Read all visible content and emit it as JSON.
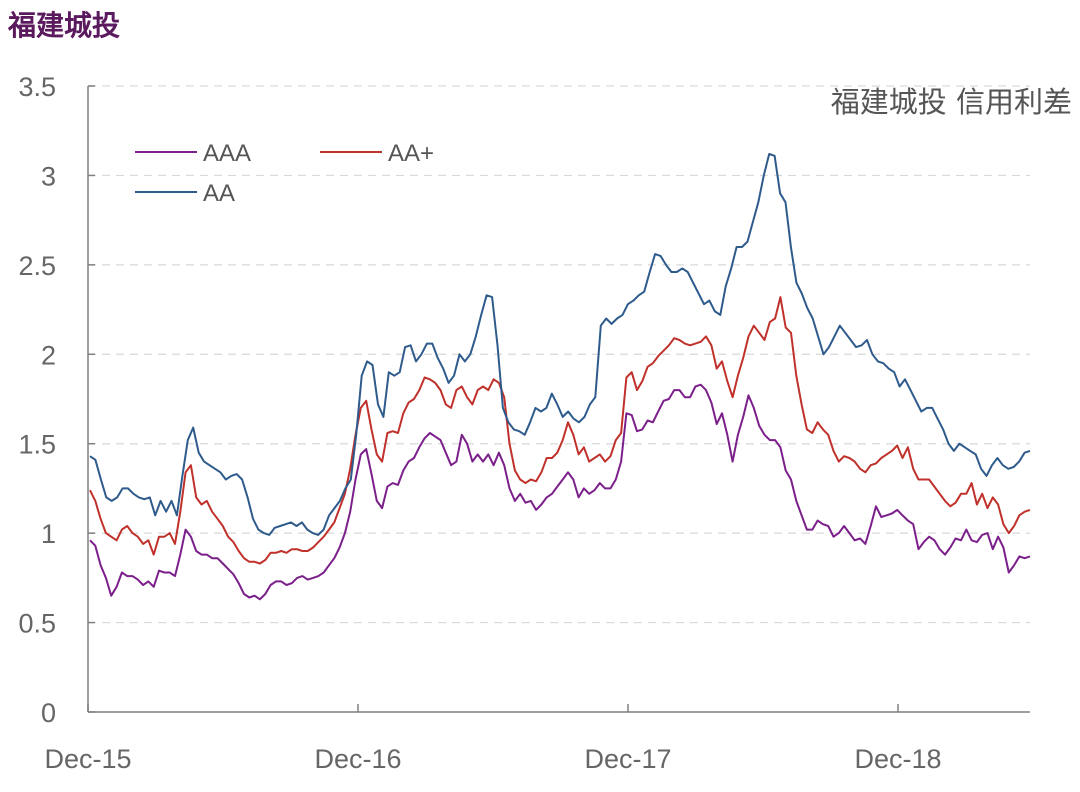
{
  "page_title": "福建城投",
  "chart_data": {
    "type": "line",
    "title": "福建城投 信用利差",
    "xlabel": "",
    "ylabel": "",
    "ylim": [
      0,
      3.5
    ],
    "y_ticks": [
      "0",
      "0.5",
      "1",
      "1.5",
      "2",
      "2.5",
      "3",
      "3.5"
    ],
    "x_ticks": [
      "Dec-15",
      "Dec-16",
      "Dec-17",
      "Dec-18"
    ],
    "grid": "horizontal dashed",
    "legend_position": "top-left",
    "x_start": "2015-12",
    "x_end": "2019-05",
    "x_tick_dates": [
      "2015-12",
      "2016-12",
      "2017-12",
      "2018-12"
    ],
    "series": [
      {
        "name": "AAA",
        "color": "#7b1f8a",
        "values": [
          0.96,
          0.93,
          0.82,
          0.75,
          0.65,
          0.7,
          0.78,
          0.76,
          0.76,
          0.74,
          0.71,
          0.73,
          0.7,
          0.79,
          0.78,
          0.78,
          0.76,
          0.88,
          1.02,
          0.98,
          0.9,
          0.88,
          0.88,
          0.86,
          0.86,
          0.83,
          0.8,
          0.77,
          0.72,
          0.66,
          0.64,
          0.65,
          0.63,
          0.66,
          0.71,
          0.73,
          0.73,
          0.71,
          0.72,
          0.75,
          0.76,
          0.74,
          0.75,
          0.76,
          0.78,
          0.82,
          0.86,
          0.92,
          1.0,
          1.12,
          1.3,
          1.44,
          1.47,
          1.33,
          1.18,
          1.14,
          1.26,
          1.28,
          1.27,
          1.35,
          1.4,
          1.42,
          1.48,
          1.53,
          1.56,
          1.54,
          1.52,
          1.45,
          1.38,
          1.4,
          1.55,
          1.5,
          1.4,
          1.44,
          1.4,
          1.44,
          1.38,
          1.45,
          1.38,
          1.25,
          1.18,
          1.22,
          1.17,
          1.18,
          1.13,
          1.16,
          1.2,
          1.22,
          1.26,
          1.3,
          1.34,
          1.3,
          1.2,
          1.25,
          1.22,
          1.24,
          1.28,
          1.25,
          1.25,
          1.3,
          1.4,
          1.67,
          1.66,
          1.57,
          1.58,
          1.63,
          1.62,
          1.68,
          1.74,
          1.75,
          1.8,
          1.8,
          1.76,
          1.76,
          1.82,
          1.83,
          1.8,
          1.73,
          1.61,
          1.67,
          1.55,
          1.4,
          1.55,
          1.65,
          1.77,
          1.7,
          1.6,
          1.55,
          1.52,
          1.52,
          1.48,
          1.35,
          1.3,
          1.18,
          1.1,
          1.02,
          1.02,
          1.07,
          1.05,
          1.04,
          0.98,
          1.0,
          1.04,
          1.0,
          0.96,
          0.97,
          0.94,
          1.04,
          1.15,
          1.09,
          1.1,
          1.11,
          1.13,
          1.1,
          1.07,
          1.05,
          0.91,
          0.95,
          0.98,
          0.96,
          0.91,
          0.88,
          0.92,
          0.97,
          0.96,
          1.02,
          0.96,
          0.95,
          0.99,
          1.0,
          0.91,
          0.98,
          0.92,
          0.78,
          0.82,
          0.87,
          0.86,
          0.87
        ]
      },
      {
        "name": "AA+",
        "color": "#c0312b",
        "values": [
          1.24,
          1.18,
          1.08,
          1.0,
          0.98,
          0.96,
          1.02,
          1.04,
          1.0,
          0.98,
          0.94,
          0.96,
          0.88,
          0.98,
          0.98,
          1.0,
          0.94,
          1.12,
          1.34,
          1.38,
          1.2,
          1.16,
          1.18,
          1.12,
          1.08,
          1.04,
          0.98,
          0.95,
          0.9,
          0.86,
          0.84,
          0.84,
          0.83,
          0.85,
          0.89,
          0.89,
          0.9,
          0.89,
          0.91,
          0.91,
          0.9,
          0.9,
          0.92,
          0.95,
          0.98,
          1.02,
          1.06,
          1.14,
          1.22,
          1.36,
          1.55,
          1.7,
          1.74,
          1.58,
          1.44,
          1.4,
          1.56,
          1.57,
          1.56,
          1.67,
          1.73,
          1.75,
          1.8,
          1.87,
          1.86,
          1.84,
          1.8,
          1.72,
          1.7,
          1.8,
          1.82,
          1.76,
          1.72,
          1.8,
          1.82,
          1.8,
          1.86,
          1.84,
          1.76,
          1.5,
          1.35,
          1.3,
          1.28,
          1.3,
          1.29,
          1.34,
          1.42,
          1.42,
          1.45,
          1.52,
          1.62,
          1.55,
          1.44,
          1.48,
          1.4,
          1.42,
          1.44,
          1.4,
          1.43,
          1.52,
          1.56,
          1.87,
          1.9,
          1.8,
          1.85,
          1.93,
          1.95,
          1.99,
          2.02,
          2.05,
          2.09,
          2.08,
          2.06,
          2.05,
          2.06,
          2.07,
          2.1,
          2.05,
          1.92,
          1.96,
          1.85,
          1.76,
          1.88,
          1.98,
          2.1,
          2.16,
          2.12,
          2.08,
          2.18,
          2.2,
          2.32,
          2.15,
          2.12,
          1.88,
          1.72,
          1.58,
          1.56,
          1.62,
          1.58,
          1.55,
          1.46,
          1.4,
          1.43,
          1.42,
          1.4,
          1.36,
          1.34,
          1.38,
          1.39,
          1.42,
          1.44,
          1.46,
          1.49,
          1.42,
          1.48,
          1.36,
          1.3,
          1.3,
          1.3,
          1.26,
          1.22,
          1.18,
          1.15,
          1.17,
          1.22,
          1.22,
          1.28,
          1.16,
          1.22,
          1.14,
          1.2,
          1.16,
          1.05,
          1.0,
          1.04,
          1.1,
          1.12,
          1.13
        ]
      },
      {
        "name": "AA",
        "color": "#2e5b8c",
        "values": [
          1.43,
          1.41,
          1.3,
          1.2,
          1.18,
          1.2,
          1.25,
          1.25,
          1.22,
          1.2,
          1.19,
          1.2,
          1.1,
          1.18,
          1.12,
          1.18,
          1.1,
          1.32,
          1.52,
          1.59,
          1.45,
          1.4,
          1.38,
          1.36,
          1.34,
          1.3,
          1.32,
          1.33,
          1.3,
          1.2,
          1.08,
          1.02,
          1.0,
          0.99,
          1.03,
          1.04,
          1.05,
          1.06,
          1.04,
          1.06,
          1.02,
          1.0,
          0.99,
          1.02,
          1.1,
          1.14,
          1.18,
          1.25,
          1.3,
          1.55,
          1.88,
          1.96,
          1.94,
          1.72,
          1.65,
          1.9,
          1.88,
          1.9,
          2.04,
          2.05,
          1.96,
          2.0,
          2.06,
          2.06,
          1.98,
          1.92,
          1.84,
          1.88,
          2.0,
          1.96,
          2.0,
          2.1,
          2.22,
          2.33,
          2.32,
          2.05,
          1.7,
          1.62,
          1.58,
          1.57,
          1.55,
          1.62,
          1.7,
          1.68,
          1.7,
          1.78,
          1.72,
          1.65,
          1.68,
          1.64,
          1.62,
          1.65,
          1.72,
          1.76,
          2.16,
          2.2,
          2.17,
          2.2,
          2.22,
          2.28,
          2.3,
          2.33,
          2.35,
          2.46,
          2.56,
          2.55,
          2.5,
          2.46,
          2.46,
          2.48,
          2.46,
          2.4,
          2.34,
          2.28,
          2.3,
          2.24,
          2.22,
          2.38,
          2.48,
          2.6,
          2.6,
          2.63,
          2.74,
          2.85,
          3.0,
          3.12,
          3.11,
          2.9,
          2.85,
          2.6,
          2.4,
          2.34,
          2.26,
          2.2,
          2.1,
          2.0,
          2.04,
          2.1,
          2.16,
          2.12,
          2.08,
          2.04,
          2.05,
          2.08,
          2.0,
          1.96,
          1.95,
          1.92,
          1.9,
          1.82,
          1.86,
          1.8,
          1.74,
          1.68,
          1.7,
          1.7,
          1.64,
          1.58,
          1.5,
          1.46,
          1.5,
          1.48,
          1.46,
          1.44,
          1.36,
          1.32,
          1.38,
          1.42,
          1.38,
          1.36,
          1.37,
          1.4,
          1.45,
          1.46
        ]
      }
    ]
  }
}
